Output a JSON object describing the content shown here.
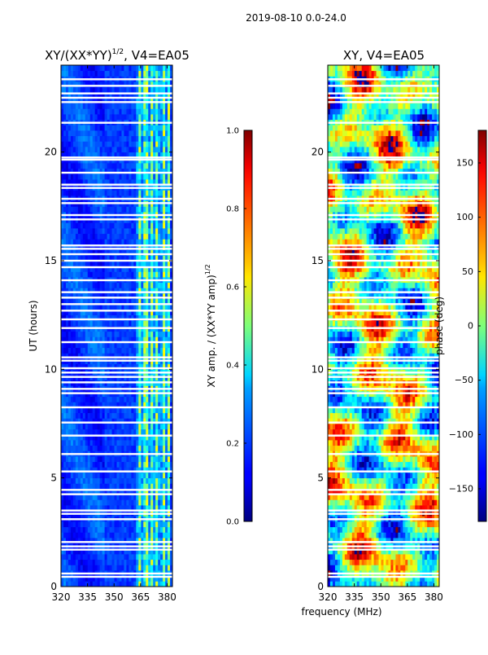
{
  "page": {
    "suptitle": "2019-08-10 0.0-24.0",
    "shared_xlabel": "frequency (MHz)"
  },
  "chart_data": [
    {
      "type": "heatmap",
      "title": "XY/(XX*YY)",
      "title_superscript": "1/2",
      "title_suffix": ", V4=EA05",
      "xlabel": "frequency (MHz)",
      "ylabel": "UT (hours)",
      "xlim": [
        320,
        383
      ],
      "ylim": [
        0,
        24
      ],
      "xticks": [
        320,
        335,
        350,
        365,
        380
      ],
      "yticks": [
        0,
        5,
        10,
        15,
        20
      ],
      "colorbar": {
        "label": "XY amp. / (XX*YY amp)",
        "label_superscript": "1/2",
        "range": [
          0.0,
          1.0
        ],
        "ticks": [
          "0.0",
          "0.2",
          "0.4",
          "0.6",
          "0.8",
          "1.0"
        ],
        "colormap": "jet"
      },
      "flagged_rows_ut": [
        0.45,
        0.6,
        1.7,
        1.85,
        2.05,
        3.1,
        3.35,
        3.5,
        4.25,
        4.45,
        5.3,
        6.1,
        6.95,
        7.55,
        8.25,
        8.9,
        9.1,
        9.4,
        9.65,
        9.85,
        10.05,
        10.4,
        10.55,
        11.25,
        11.9,
        12.3,
        12.7,
        13.0,
        13.3,
        13.55,
        14.1,
        14.7,
        15.0,
        15.3,
        15.55,
        15.7,
        16.9,
        17.1,
        17.65,
        17.85,
        18.35,
        18.5,
        19.05,
        19.65,
        19.75,
        21.35,
        22.3,
        22.5,
        22.7,
        23.05,
        23.35
      ]
    },
    {
      "type": "heatmap",
      "title": "XY, V4=EA05",
      "xlabel": "frequency (MHz)",
      "ylabel": "",
      "xlim": [
        320,
        383
      ],
      "ylim": [
        0,
        24
      ],
      "xticks": [
        320,
        335,
        350,
        365,
        380
      ],
      "yticks": [
        0,
        5,
        10,
        15,
        20
      ],
      "colorbar": {
        "label": "phase (deg)",
        "range": [
          -180,
          180
        ],
        "ticks": [
          "150",
          "100",
          "50",
          "0",
          "−50",
          "−100",
          "−150"
        ],
        "colormap": "jet"
      },
      "flagged_rows_ut": [
        0.45,
        0.6,
        1.7,
        1.85,
        2.05,
        3.1,
        3.35,
        3.5,
        4.25,
        4.45,
        5.3,
        6.1,
        6.95,
        7.55,
        8.25,
        8.9,
        9.1,
        9.4,
        9.65,
        9.85,
        10.05,
        10.4,
        10.55,
        11.25,
        11.9,
        12.3,
        12.7,
        13.0,
        13.3,
        13.55,
        14.1,
        14.7,
        15.0,
        15.3,
        15.55,
        15.7,
        16.9,
        17.1,
        17.65,
        17.85,
        18.35,
        18.5,
        19.05,
        19.65,
        19.75,
        21.35,
        22.3,
        22.5,
        22.7,
        23.05,
        23.35
      ]
    }
  ]
}
